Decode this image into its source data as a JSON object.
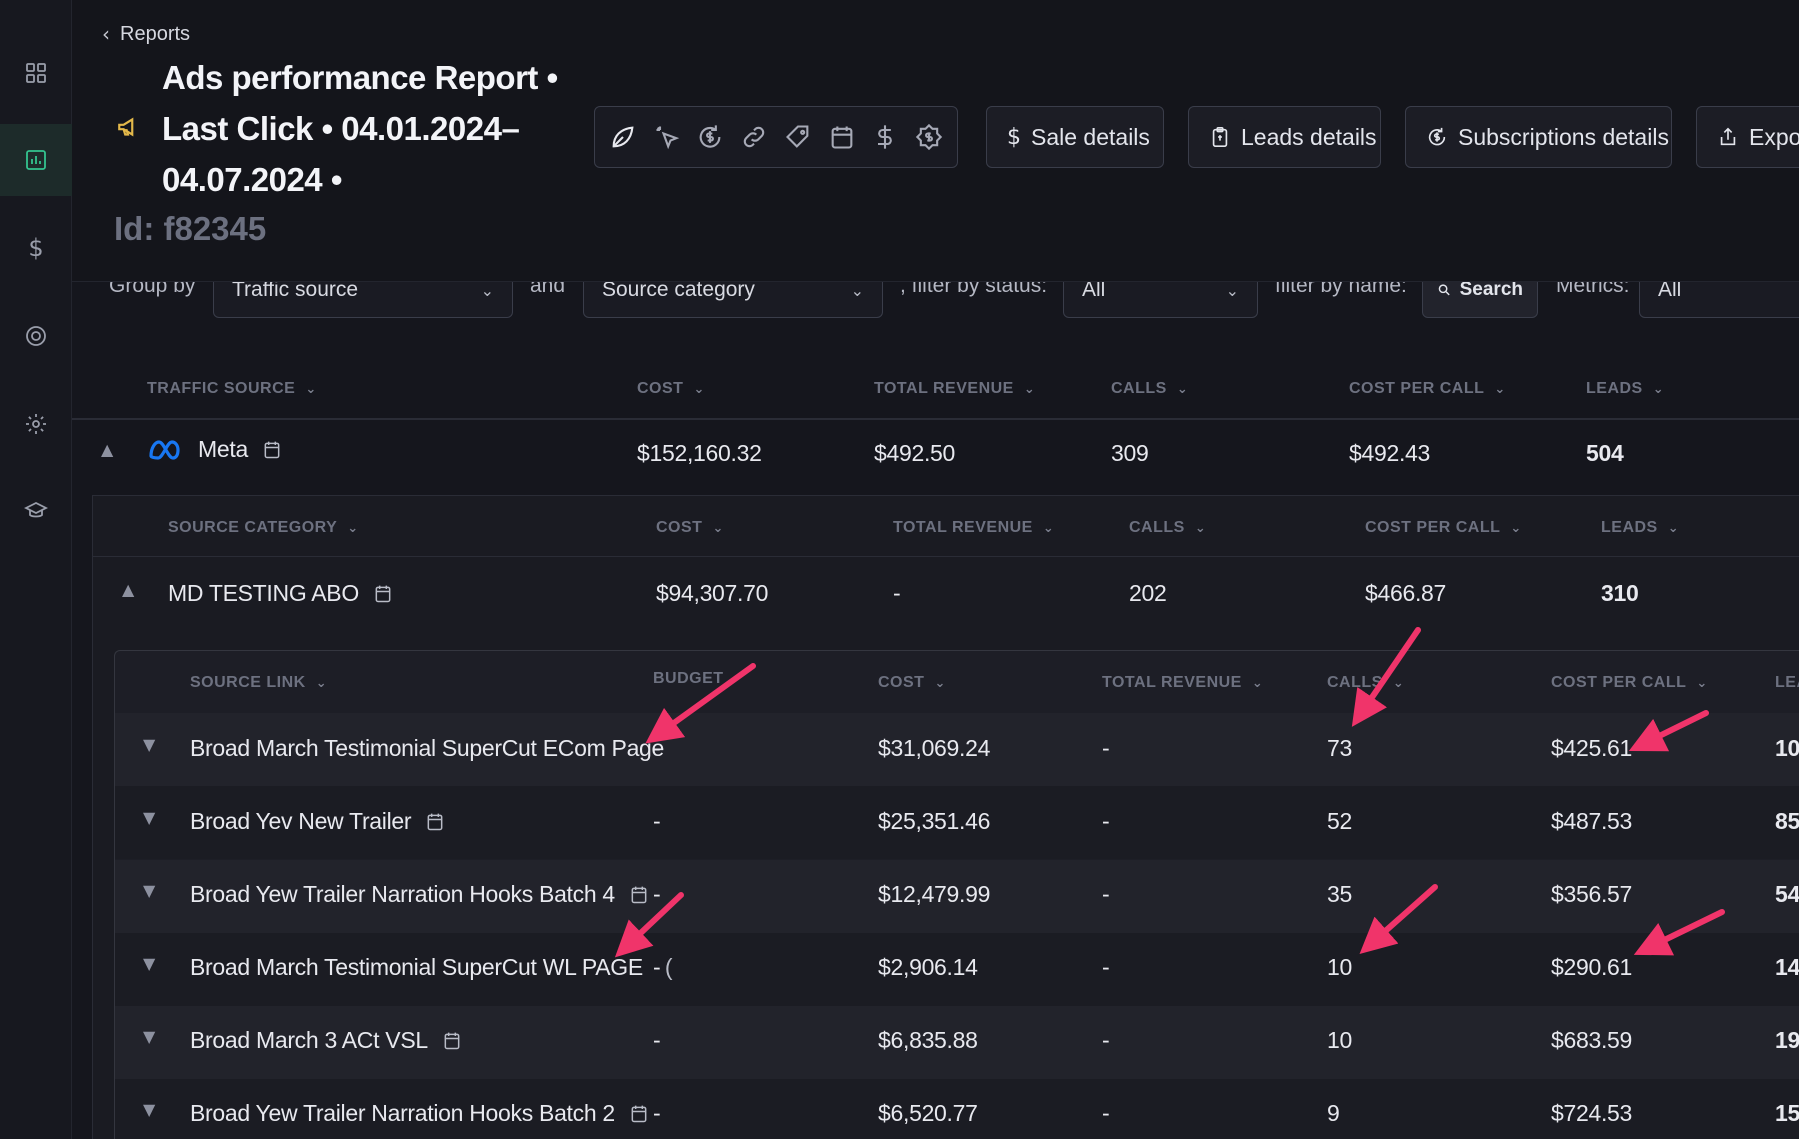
{
  "sidebar": {
    "items": [
      {
        "icon": "dashboard-grid-icon"
      },
      {
        "icon": "reports-chart-icon",
        "active": true
      },
      {
        "icon": "dollar-icon",
        "glyph": "$"
      },
      {
        "icon": "target-icon"
      },
      {
        "icon": "settings-gear-icon"
      },
      {
        "icon": "graduation-cap-icon"
      }
    ]
  },
  "header": {
    "breadcrumb": "Reports",
    "title_line1": "Ads performance Report •",
    "title_line2": "Last Click • 04.01.2024–",
    "title_line3": "04.07.2024 •",
    "report_id": "Id: f82345",
    "icon_toolbar": [
      "leaf-icon",
      "cursor-click-icon",
      "dollar-refresh-icon",
      "link-icon",
      "tag-icon",
      "calendar-icon",
      "dollar-icon",
      "price-tag-icon"
    ],
    "buttons": {
      "sale_details": "Sale details",
      "leads_details": "Leads details",
      "subscriptions_details": "Subscriptions details",
      "export": "Expor"
    }
  },
  "filters": {
    "group_by_label": "Group by",
    "group_by_value": "Traffic source",
    "and_label": "and",
    "second_group_value": "Source category",
    "status_label": ", filter by status:",
    "status_value": "All",
    "name_label": "filter by name:",
    "search_label": "Search",
    "metrics_label": "Metrics:",
    "metrics_value": "All"
  },
  "traffic_table": {
    "headers": [
      "TRAFFIC SOURCE",
      "COST",
      "TOTAL REVENUE",
      "CALLS",
      "COST PER CALL",
      "LEADS"
    ],
    "row": {
      "name": "Meta",
      "cost": "$152,160.32",
      "revenue": "$492.50",
      "calls": "309",
      "cost_per_call": "$492.43",
      "leads": "504"
    }
  },
  "category_table": {
    "headers": [
      "SOURCE CATEGORY",
      "COST",
      "TOTAL REVENUE",
      "CALLS",
      "COST PER CALL",
      "LEADS"
    ],
    "row": {
      "name": "MD TESTING ABO",
      "cost": "$94,307.70",
      "revenue": "-",
      "calls": "202",
      "cost_per_call": "$466.87",
      "leads": "310"
    }
  },
  "link_table": {
    "headers": [
      "SOURCE LINK",
      "BUDGET",
      "COST",
      "TOTAL REVENUE",
      "CALLS",
      "COST PER CALL",
      "LEA"
    ],
    "rows": [
      {
        "name": "Broad March Testimonial SuperCut ECom Page",
        "budget": "-",
        "cost": "$31,069.24",
        "revenue": "-",
        "calls": "73",
        "cost_per_call": "$425.61",
        "leads": "10"
      },
      {
        "name": "Broad Yev New Trailer",
        "budget": "-",
        "cost": "$25,351.46",
        "revenue": "-",
        "calls": "52",
        "cost_per_call": "$487.53",
        "leads": "85"
      },
      {
        "name": "Broad Yew Trailer Narration Hooks Batch 4",
        "budget": "-",
        "cost": "$12,479.99",
        "revenue": "-",
        "calls": "35",
        "cost_per_call": "$356.57",
        "leads": "54"
      },
      {
        "name": "Broad March Testimonial SuperCut WL PAGE",
        "budget": "-",
        "cost": "$2,906.14",
        "revenue": "-",
        "calls": "10",
        "cost_per_call": "$290.61",
        "leads": "14"
      },
      {
        "name": "Broad March 3 ACt VSL",
        "budget": "-",
        "cost": "$6,835.88",
        "revenue": "-",
        "calls": "10",
        "cost_per_call": "$683.59",
        "leads": "19"
      },
      {
        "name": "Broad Yew Trailer Narration Hooks Batch 2",
        "budget": "-",
        "cost": "$6,520.77",
        "revenue": "-",
        "calls": "9",
        "cost_per_call": "$724.53",
        "leads": "15"
      }
    ]
  },
  "colors": {
    "accent_green": "#34c38f",
    "annotation_arrow": "#f0346a",
    "megaphone": "#e3b84a",
    "meta_logo": "#1877f2"
  }
}
